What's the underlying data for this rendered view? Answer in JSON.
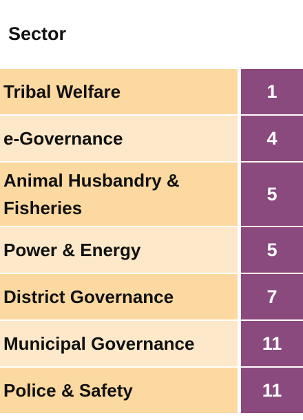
{
  "header": {
    "title": "Sector"
  },
  "table": {
    "rows": [
      [
        "Tribal Welfare",
        "1"
      ],
      [
        "e-Governance",
        "4"
      ],
      [
        "Animal Husbandry & Fisheries",
        "5"
      ],
      [
        "Power & Energy",
        "5"
      ],
      [
        "District Governance",
        "7"
      ],
      [
        "Municipal Governance",
        "11"
      ],
      [
        "Police & Safety",
        "11"
      ]
    ]
  }
}
